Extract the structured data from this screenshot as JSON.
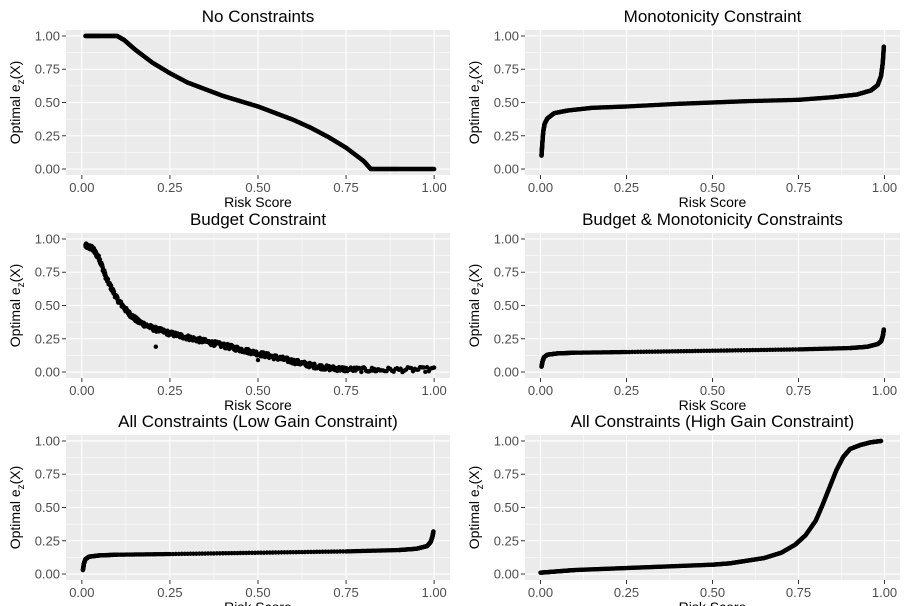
{
  "chart_data": [
    {
      "type": "scatter",
      "title": "No Constraints",
      "xlabel": "Risk Score",
      "ylabel": {
        "prefix": "Optimal e",
        "sub": "z",
        "suffix": "(X)"
      },
      "xlim": [
        0,
        1
      ],
      "ylim": [
        0,
        1
      ],
      "xticks": [
        "0.00",
        "0.25",
        "0.50",
        "0.75",
        "1.00"
      ],
      "yticks": [
        "0.00",
        "0.25",
        "0.50",
        "0.75",
        "1.00"
      ],
      "points": [
        [
          0.01,
          1.0
        ],
        [
          0.05,
          1.0
        ],
        [
          0.1,
          1.0
        ],
        [
          0.12,
          0.97
        ],
        [
          0.15,
          0.9
        ],
        [
          0.2,
          0.8
        ],
        [
          0.25,
          0.72
        ],
        [
          0.3,
          0.65
        ],
        [
          0.35,
          0.6
        ],
        [
          0.4,
          0.55
        ],
        [
          0.45,
          0.51
        ],
        [
          0.5,
          0.47
        ],
        [
          0.55,
          0.42
        ],
        [
          0.6,
          0.37
        ],
        [
          0.65,
          0.31
        ],
        [
          0.7,
          0.24
        ],
        [
          0.75,
          0.16
        ],
        [
          0.8,
          0.06
        ],
        [
          0.82,
          0.0
        ],
        [
          0.9,
          0.0
        ],
        [
          1.0,
          0.0
        ]
      ],
      "jitter": 0
    },
    {
      "type": "scatter",
      "title": "Monotonicity Constraint",
      "xlabel": "Risk Score",
      "ylabel": {
        "prefix": "Optimal e",
        "sub": "z",
        "suffix": "(X)"
      },
      "xlim": [
        0,
        1
      ],
      "ylim": [
        0,
        1
      ],
      "xticks": [
        "0.00",
        "0.25",
        "0.50",
        "0.75",
        "1.00"
      ],
      "yticks": [
        "0.00",
        "0.25",
        "0.50",
        "0.75",
        "1.00"
      ],
      "points": [
        [
          0.003,
          0.1
        ],
        [
          0.005,
          0.18
        ],
        [
          0.008,
          0.28
        ],
        [
          0.012,
          0.34
        ],
        [
          0.02,
          0.38
        ],
        [
          0.04,
          0.42
        ],
        [
          0.08,
          0.44
        ],
        [
          0.15,
          0.46
        ],
        [
          0.25,
          0.47
        ],
        [
          0.4,
          0.49
        ],
        [
          0.5,
          0.5
        ],
        [
          0.6,
          0.51
        ],
        [
          0.75,
          0.52
        ],
        [
          0.85,
          0.54
        ],
        [
          0.92,
          0.56
        ],
        [
          0.96,
          0.59
        ],
        [
          0.98,
          0.63
        ],
        [
          0.99,
          0.7
        ],
        [
          0.995,
          0.8
        ],
        [
          0.998,
          0.92
        ]
      ],
      "jitter": 0
    },
    {
      "type": "scatter",
      "title": "Budget Constraint",
      "xlabel": "Risk Score",
      "ylabel": {
        "prefix": "Optimal e",
        "sub": "z",
        "suffix": "(X)"
      },
      "xlim": [
        0,
        1
      ],
      "ylim": [
        0,
        1
      ],
      "xticks": [
        "0.00",
        "0.25",
        "0.50",
        "0.75",
        "1.00"
      ],
      "yticks": [
        "0.00",
        "0.25",
        "0.50",
        "0.75",
        "1.00"
      ],
      "points": [
        [
          0.01,
          0.95
        ],
        [
          0.03,
          0.93
        ],
        [
          0.05,
          0.85
        ],
        [
          0.07,
          0.7
        ],
        [
          0.1,
          0.55
        ],
        [
          0.13,
          0.45
        ],
        [
          0.16,
          0.38
        ],
        [
          0.2,
          0.33
        ],
        [
          0.25,
          0.29
        ],
        [
          0.3,
          0.26
        ],
        [
          0.35,
          0.23
        ],
        [
          0.4,
          0.2
        ],
        [
          0.45,
          0.17
        ],
        [
          0.5,
          0.14
        ],
        [
          0.55,
          0.11
        ],
        [
          0.6,
          0.08
        ],
        [
          0.65,
          0.05
        ],
        [
          0.7,
          0.03
        ],
        [
          0.75,
          0.02
        ],
        [
          0.85,
          0.015
        ],
        [
          1.0,
          0.02
        ]
      ],
      "jitter": 0.018
    },
    {
      "type": "scatter",
      "title": "Budget  & Monotonicity Constraints",
      "xlabel": "Risk Score",
      "ylabel": {
        "prefix": "Optimal e",
        "sub": "z",
        "suffix": "(X)"
      },
      "xlim": [
        0,
        1
      ],
      "ylim": [
        0,
        1
      ],
      "xticks": [
        "0.00",
        "0.25",
        "0.50",
        "0.75",
        "1.00"
      ],
      "yticks": [
        "0.00",
        "0.25",
        "0.50",
        "0.75",
        "1.00"
      ],
      "points": [
        [
          0.003,
          0.04
        ],
        [
          0.006,
          0.08
        ],
        [
          0.01,
          0.11
        ],
        [
          0.02,
          0.13
        ],
        [
          0.05,
          0.14
        ],
        [
          0.1,
          0.145
        ],
        [
          0.25,
          0.15
        ],
        [
          0.5,
          0.16
        ],
        [
          0.75,
          0.17
        ],
        [
          0.9,
          0.18
        ],
        [
          0.95,
          0.19
        ],
        [
          0.98,
          0.21
        ],
        [
          0.99,
          0.23
        ],
        [
          0.995,
          0.27
        ],
        [
          0.998,
          0.32
        ]
      ],
      "jitter": 0
    },
    {
      "type": "scatter",
      "title": "All Constraints (Low Gain Constraint)",
      "xlabel": "Risk Score",
      "ylabel": {
        "prefix": "Optimal e",
        "sub": "z",
        "suffix": "(X)"
      },
      "xlim": [
        0,
        1
      ],
      "ylim": [
        0,
        1
      ],
      "xticks": [
        "0.00",
        "0.25",
        "0.50",
        "0.75",
        "1.00"
      ],
      "yticks": [
        "0.00",
        "0.25",
        "0.50",
        "0.75",
        "1.00"
      ],
      "points": [
        [
          0.003,
          0.03
        ],
        [
          0.006,
          0.08
        ],
        [
          0.01,
          0.11
        ],
        [
          0.02,
          0.13
        ],
        [
          0.05,
          0.14
        ],
        [
          0.1,
          0.145
        ],
        [
          0.25,
          0.15
        ],
        [
          0.5,
          0.16
        ],
        [
          0.75,
          0.17
        ],
        [
          0.9,
          0.18
        ],
        [
          0.95,
          0.19
        ],
        [
          0.98,
          0.21
        ],
        [
          0.99,
          0.24
        ],
        [
          0.995,
          0.28
        ],
        [
          0.998,
          0.32
        ]
      ],
      "jitter": 0
    },
    {
      "type": "scatter",
      "title": "All Constraints (High Gain Constraint)",
      "xlabel": "Risk Score",
      "ylabel": {
        "prefix": "Optimal e",
        "sub": "z",
        "suffix": "(X)"
      },
      "xlim": [
        0,
        1
      ],
      "ylim": [
        0,
        1
      ],
      "xticks": [
        "0.00",
        "0.25",
        "0.50",
        "0.75",
        "1.00"
      ],
      "yticks": [
        "0.00",
        "0.25",
        "0.50",
        "0.75",
        "1.00"
      ],
      "points": [
        [
          0.0,
          0.01
        ],
        [
          0.05,
          0.02
        ],
        [
          0.1,
          0.03
        ],
        [
          0.2,
          0.04
        ],
        [
          0.3,
          0.05
        ],
        [
          0.4,
          0.06
        ],
        [
          0.5,
          0.07
        ],
        [
          0.55,
          0.08
        ],
        [
          0.6,
          0.1
        ],
        [
          0.65,
          0.12
        ],
        [
          0.7,
          0.16
        ],
        [
          0.74,
          0.22
        ],
        [
          0.77,
          0.29
        ],
        [
          0.8,
          0.4
        ],
        [
          0.82,
          0.52
        ],
        [
          0.84,
          0.65
        ],
        [
          0.86,
          0.78
        ],
        [
          0.88,
          0.88
        ],
        [
          0.9,
          0.94
        ],
        [
          0.93,
          0.97
        ],
        [
          0.96,
          0.99
        ],
        [
          0.99,
          1.0
        ]
      ],
      "jitter": 0
    }
  ]
}
